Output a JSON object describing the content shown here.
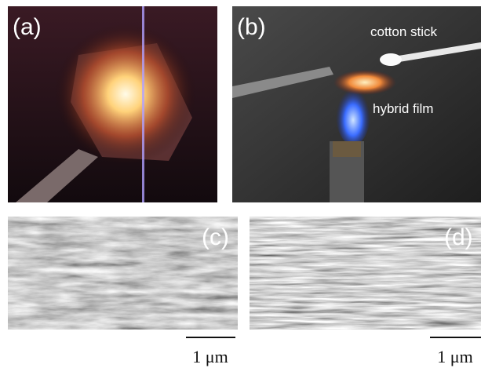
{
  "panels": [
    {
      "label": "(a)"
    },
    {
      "label": "(b)",
      "annotations": [
        "cotton stick",
        "hybrid film"
      ]
    },
    {
      "label": "(c)",
      "scale_bar": "1 μm"
    },
    {
      "label": "(d)",
      "scale_bar": "1 μm"
    }
  ]
}
